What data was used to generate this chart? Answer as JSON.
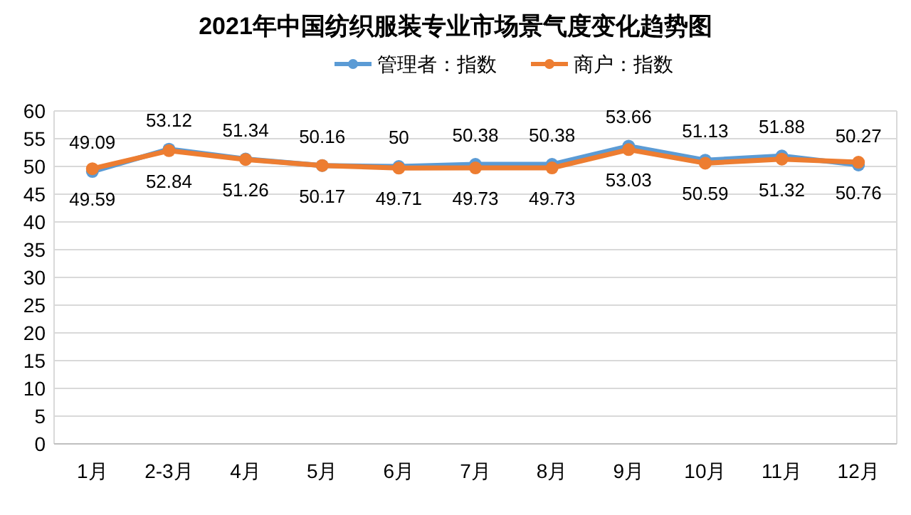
{
  "chart_data": {
    "type": "line",
    "title": "2021年中国纺织服装专业市场景气度变化趋势图",
    "categories": [
      "1月",
      "2-3月",
      "4月",
      "5月",
      "6月",
      "7月",
      "8月",
      "9月",
      "10月",
      "11月",
      "12月"
    ],
    "series": [
      {
        "name": "管理者：指数",
        "color": "#5b9bd5",
        "values": [
          49.09,
          53.12,
          51.34,
          50.16,
          50,
          50.38,
          50.38,
          53.66,
          51.13,
          51.88,
          50.27
        ]
      },
      {
        "name": "商户：指数",
        "color": "#ed7d31",
        "values": [
          49.59,
          52.84,
          51.26,
          50.17,
          49.71,
          49.73,
          49.73,
          53.03,
          50.59,
          51.32,
          50.76
        ]
      }
    ],
    "ylim": [
      0,
      60
    ],
    "yticks": [
      0,
      5,
      10,
      15,
      20,
      25,
      30,
      35,
      40,
      45,
      50,
      55,
      60
    ],
    "grid": "y",
    "legend": "top",
    "marker": "circle",
    "line_style": "solid",
    "data_labels": true
  }
}
